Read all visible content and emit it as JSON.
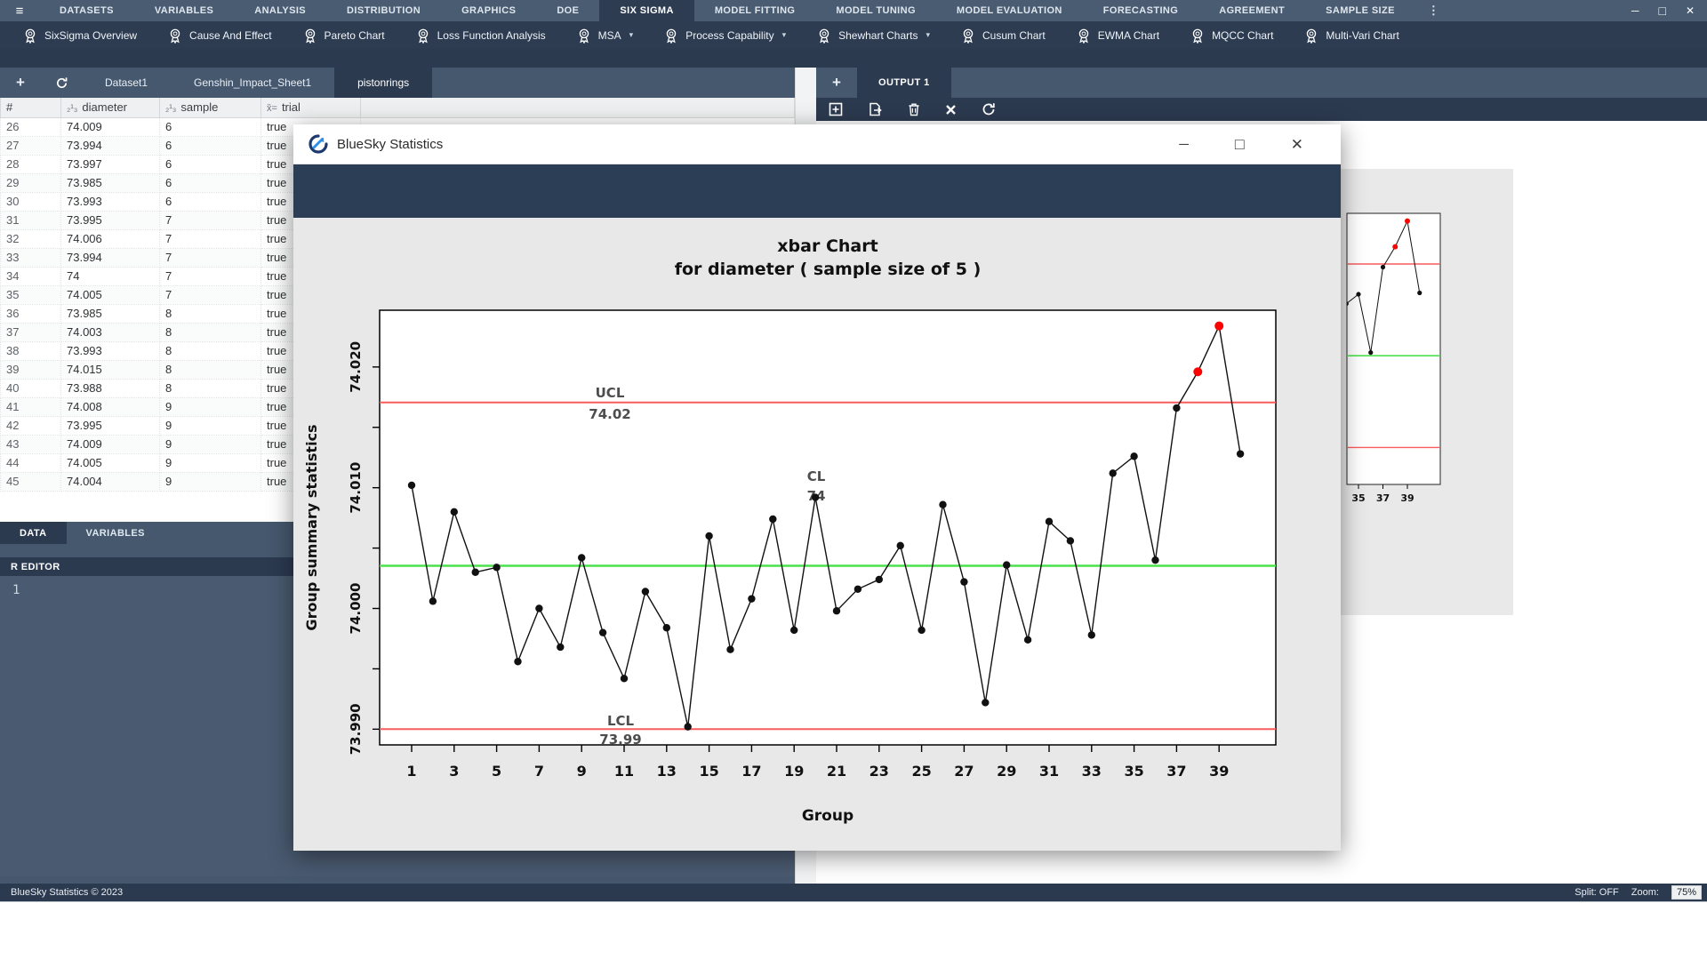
{
  "menubar": {
    "hamburger": "≡",
    "items": [
      "DATASETS",
      "VARIABLES",
      "ANALYSIS",
      "DISTRIBUTION",
      "GRAPHICS",
      "DOE",
      "SIX SIGMA",
      "MODEL FITTING",
      "MODEL TUNING",
      "MODEL EVALUATION",
      "FORECASTING",
      "AGREEMENT",
      "SAMPLE SIZE"
    ],
    "active": "SIX SIGMA",
    "overflow": "⋮",
    "window_controls": {
      "minimize": "─",
      "maximize": "□",
      "close": "✕"
    }
  },
  "ribbon": {
    "items": [
      {
        "label": "SixSigma Overview",
        "dropdown": false
      },
      {
        "label": "Cause And Effect",
        "dropdown": false
      },
      {
        "label": "Pareto Chart",
        "dropdown": false
      },
      {
        "label": "Loss Function Analysis",
        "dropdown": false
      },
      {
        "label": "MSA",
        "dropdown": true
      },
      {
        "label": "Process Capability",
        "dropdown": true
      },
      {
        "label": "Shewhart Charts",
        "dropdown": true
      },
      {
        "label": "Cusum Chart",
        "dropdown": false
      },
      {
        "label": "EWMA Chart",
        "dropdown": false
      },
      {
        "label": "MQCC Chart",
        "dropdown": false
      },
      {
        "label": "Multi-Vari Chart",
        "dropdown": false
      }
    ]
  },
  "left_panel": {
    "dataset_tabs": {
      "add": "+",
      "tabs": [
        "Dataset1",
        "Genshin_Impact_Sheet1",
        "pistonrings"
      ],
      "active": "pistonrings"
    },
    "table": {
      "columns": [
        {
          "name": "#",
          "icon": ""
        },
        {
          "name": "diameter",
          "icon": "₂¹₃"
        },
        {
          "name": "sample",
          "icon": "₂¹₃"
        },
        {
          "name": "trial",
          "icon": "x̌="
        }
      ],
      "rows": [
        [
          "26",
          "74.009",
          "6",
          "true"
        ],
        [
          "27",
          "73.994",
          "6",
          "true"
        ],
        [
          "28",
          "73.997",
          "6",
          "true"
        ],
        [
          "29",
          "73.985",
          "6",
          "true"
        ],
        [
          "30",
          "73.993",
          "6",
          "true"
        ],
        [
          "31",
          "73.995",
          "7",
          "true"
        ],
        [
          "32",
          "74.006",
          "7",
          "true"
        ],
        [
          "33",
          "73.994",
          "7",
          "true"
        ],
        [
          "34",
          "74",
          "7",
          "true"
        ],
        [
          "35",
          "74.005",
          "7",
          "true"
        ],
        [
          "36",
          "73.985",
          "8",
          "true"
        ],
        [
          "37",
          "74.003",
          "8",
          "true"
        ],
        [
          "38",
          "73.993",
          "8",
          "true"
        ],
        [
          "39",
          "74.015",
          "8",
          "true"
        ],
        [
          "40",
          "73.988",
          "8",
          "true"
        ],
        [
          "41",
          "74.008",
          "9",
          "true"
        ],
        [
          "42",
          "73.995",
          "9",
          "true"
        ],
        [
          "43",
          "74.009",
          "9",
          "true"
        ],
        [
          "44",
          "74.005",
          "9",
          "true"
        ],
        [
          "45",
          "74.004",
          "9",
          "true"
        ]
      ]
    },
    "bottom_tabs": {
      "tabs": [
        "DATA",
        "VARIABLES"
      ],
      "active": "DATA"
    },
    "r_editor": {
      "title": "R EDITOR",
      "line_numbers": [
        "1"
      ]
    }
  },
  "output_panel": {
    "add": "+",
    "tab": "OUTPUT 1",
    "toolbar": [
      "add-output",
      "export-output",
      "delete-output",
      "close-output",
      "refresh-output"
    ]
  },
  "dialog": {
    "title": "BlueSky Statistics"
  },
  "status_bar": {
    "left": "BlueSky Statistics © 2023",
    "split": "Split: OFF",
    "zoom_label": "Zoom:",
    "zoom_value": "75%"
  },
  "chart_data": {
    "type": "line",
    "subtype": "xbar-control-chart",
    "title_line1": "xbar Chart",
    "title_line2": "for diameter ( sample size of 5 )",
    "xlabel": "Group",
    "ylabel": "Group summary statistics",
    "values": [
      74.0102,
      74.0006,
      74.008,
      74.003,
      74.0034,
      73.9956,
      74.0,
      73.9968,
      74.0042,
      73.998,
      73.9942,
      74.0014,
      73.9984,
      73.9902,
      74.006,
      73.9966,
      74.0008,
      74.0074,
      73.9982,
      74.0092,
      73.9998,
      74.0016,
      74.0024,
      74.0052,
      73.9982,
      74.0086,
      74.0022,
      73.9922,
      74.0036,
      73.9974,
      74.0072,
      74.0056,
      73.9978,
      74.0112,
      74.0126,
      74.004,
      74.0166,
      74.0196,
      74.0234,
      74.0128
    ],
    "center": 74.00353,
    "ucl": 74.01706,
    "lcl": 73.99001,
    "limit_labels": {
      "ucl": [
        "UCL",
        "74.02"
      ],
      "cl": [
        "CL",
        "74"
      ],
      "lcl": [
        "LCL",
        "73.99"
      ]
    },
    "out_of_control_groups": [
      38,
      39
    ],
    "xticks": [
      1,
      3,
      5,
      7,
      9,
      11,
      13,
      15,
      17,
      19,
      21,
      23,
      25,
      27,
      29,
      31,
      33,
      35,
      37,
      39
    ],
    "yticks_labeled": [
      73.99,
      74.0,
      74.01,
      74.02
    ],
    "ytick_minor_step": 0.005,
    "ylim": [
      73.9887,
      74.0247
    ],
    "legend": "none",
    "grid": false,
    "colors": {
      "limit_line": "#f95c5c",
      "center_line": "#4ce24c",
      "point": "#111111",
      "violation_point": "#ff0000",
      "label_text": "#4d4d4d"
    }
  }
}
